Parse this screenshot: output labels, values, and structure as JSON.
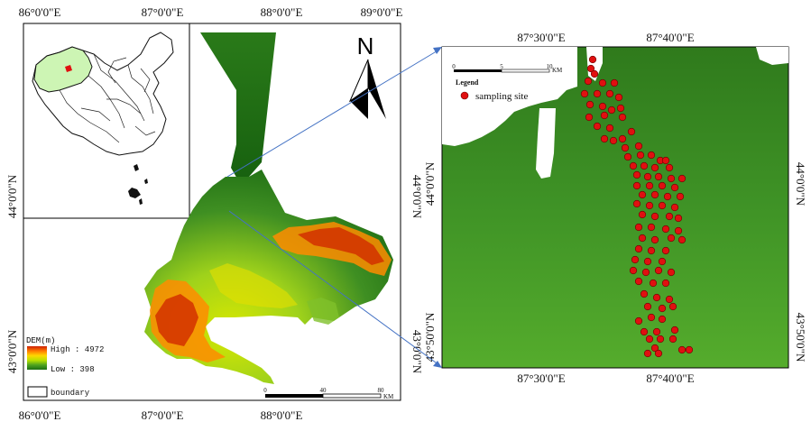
{
  "left_map": {
    "lon_labels": [
      "86°0'0\"E",
      "87°0'0\"E",
      "88°0'0\"E",
      "89°0'0\"E"
    ],
    "lat_labels": [
      "44°0'0\"N",
      "43°0'0\"N"
    ],
    "right_lat_labels": [
      "44°0'0\"N",
      "43°0'0\"N"
    ],
    "north_letter": "N",
    "dem_legend": {
      "title": "DEM(m)",
      "high_label": "High : 4972",
      "low_label": "Low : 398",
      "colors": [
        "#cc1f00",
        "#ff7a00",
        "#ffd800",
        "#b9e000",
        "#4fa31f",
        "#1c6e14"
      ]
    },
    "boundary_label": "boundary",
    "scalebar": {
      "ticks": [
        "0",
        "40",
        "80"
      ],
      "unit": "KM"
    }
  },
  "inset_map": {
    "highlight_color": "#cdf5b4"
  },
  "right_map": {
    "lon_labels": [
      "87°30'0\"E",
      "87°40'0\"E"
    ],
    "lat_labels": [
      "44°0'0\"N",
      "43°50'0\"N"
    ],
    "right_lat_labels": [
      "44°0'0\"N",
      "43°50'0\"N"
    ],
    "scalebar": {
      "ticks": [
        "0",
        "5",
        "10"
      ],
      "unit": "KM"
    },
    "legend_title": "Legend",
    "legend_item": "sampling site",
    "site_color": "#e01010",
    "connector_color": "#4472c4"
  }
}
